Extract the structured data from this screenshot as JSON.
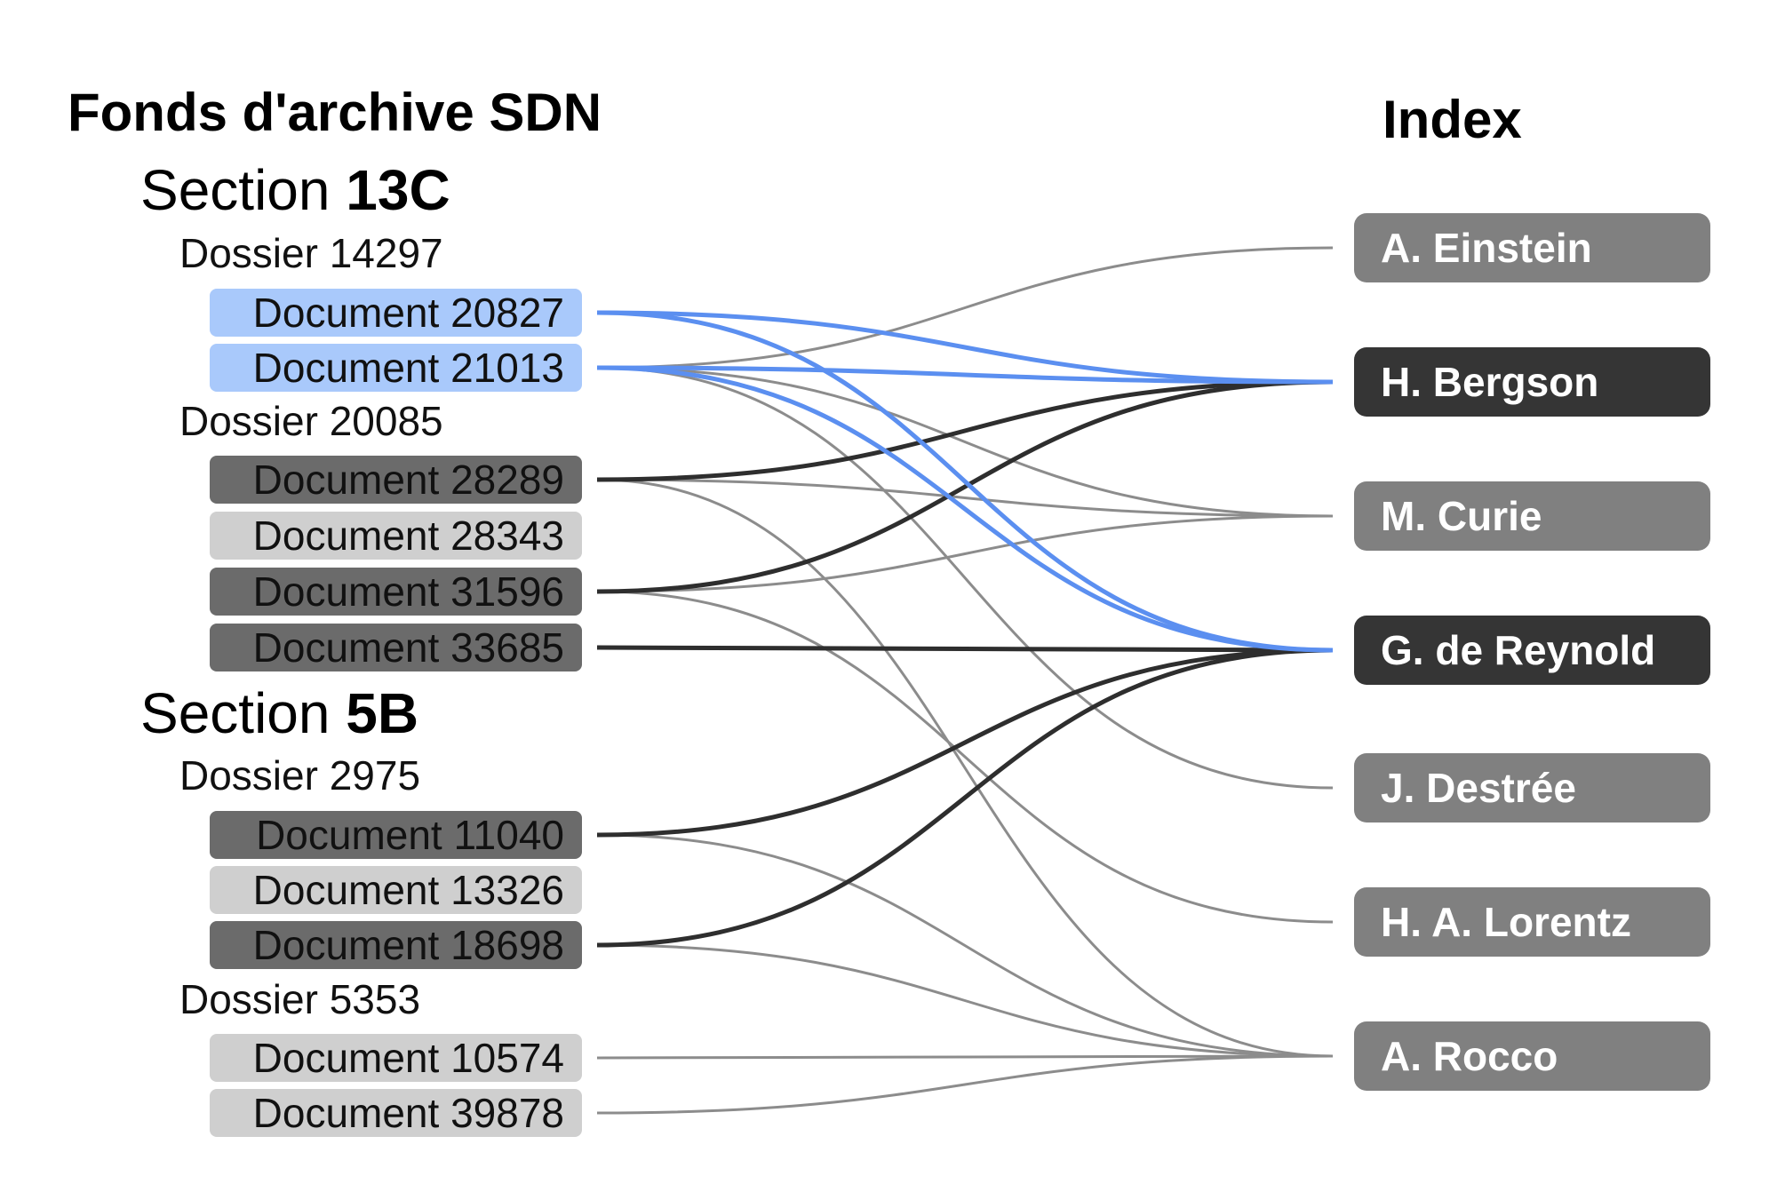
{
  "archive_title": "Fonds d'archive SDN",
  "index_title": "Index",
  "sections": [
    {
      "label": "Section",
      "id": "13C",
      "dossiers": [
        {
          "label": "Dossier 14297",
          "documents": [
            {
              "label": "Document 20827",
              "state": "selected"
            },
            {
              "label": "Document 21013",
              "state": "selected"
            }
          ]
        },
        {
          "label": "Dossier 20085",
          "documents": [
            {
              "label": "Document 28289",
              "state": "linked"
            },
            {
              "label": "Document 28343",
              "state": "unlinked"
            },
            {
              "label": "Document 31596",
              "state": "linked"
            },
            {
              "label": "Document 33685",
              "state": "linked"
            }
          ]
        }
      ]
    },
    {
      "label": "Section",
      "id": "5B",
      "dossiers": [
        {
          "label": "Dossier 2975",
          "documents": [
            {
              "label": "Document 11040",
              "state": "linked"
            },
            {
              "label": "Document 13326",
              "state": "unlinked"
            },
            {
              "label": "Document 18698",
              "state": "linked"
            }
          ]
        },
        {
          "label": "Dossier 5353",
          "documents": [
            {
              "label": "Document 10574",
              "state": "unlinked"
            },
            {
              "label": "Document 39878",
              "state": "unlinked"
            }
          ]
        }
      ]
    }
  ],
  "index_entries": [
    {
      "label": "A. Einstein",
      "state": "normal"
    },
    {
      "label": "H. Bergson",
      "state": "highlighted"
    },
    {
      "label": "M. Curie",
      "state": "normal"
    },
    {
      "label": "G. de Reynold",
      "state": "highlighted"
    },
    {
      "label": "J. Destrée",
      "state": "normal"
    },
    {
      "label": "H. A. Lorentz",
      "state": "normal"
    },
    {
      "label": "A. Rocco",
      "state": "normal"
    }
  ],
  "links": [
    {
      "from": "Document 20827",
      "to": "H. Bergson",
      "style": "selected"
    },
    {
      "from": "Document 20827",
      "to": "G. de Reynold",
      "style": "selected"
    },
    {
      "from": "Document 21013",
      "to": "H. Bergson",
      "style": "selected"
    },
    {
      "from": "Document 21013",
      "to": "G. de Reynold",
      "style": "selected"
    },
    {
      "from": "Document 21013",
      "to": "A. Einstein",
      "style": "normal"
    },
    {
      "from": "Document 21013",
      "to": "M. Curie",
      "style": "normal"
    },
    {
      "from": "Document 21013",
      "to": "J. Destrée",
      "style": "normal"
    },
    {
      "from": "Document 28289",
      "to": "H. Bergson",
      "style": "strong"
    },
    {
      "from": "Document 28289",
      "to": "M. Curie",
      "style": "normal"
    },
    {
      "from": "Document 28289",
      "to": "A. Rocco",
      "style": "normal"
    },
    {
      "from": "Document 31596",
      "to": "H. Bergson",
      "style": "strong"
    },
    {
      "from": "Document 31596",
      "to": "M. Curie",
      "style": "normal"
    },
    {
      "from": "Document 31596",
      "to": "H. A. Lorentz",
      "style": "normal"
    },
    {
      "from": "Document 33685",
      "to": "G. de Reynold",
      "style": "strong"
    },
    {
      "from": "Document 11040",
      "to": "G. de Reynold",
      "style": "strong"
    },
    {
      "from": "Document 11040",
      "to": "A. Rocco",
      "style": "normal"
    },
    {
      "from": "Document 18698",
      "to": "G. de Reynold",
      "style": "strong"
    },
    {
      "from": "Document 18698",
      "to": "A. Rocco",
      "style": "normal"
    },
    {
      "from": "Document 10574",
      "to": "A. Rocco",
      "style": "normal"
    },
    {
      "from": "Document 39878",
      "to": "A. Rocco",
      "style": "normal"
    }
  ],
  "colors": {
    "selected_link": "#5b8ff0",
    "strong_link": "#2e2e2e",
    "normal_link": "#8c8c8c"
  }
}
